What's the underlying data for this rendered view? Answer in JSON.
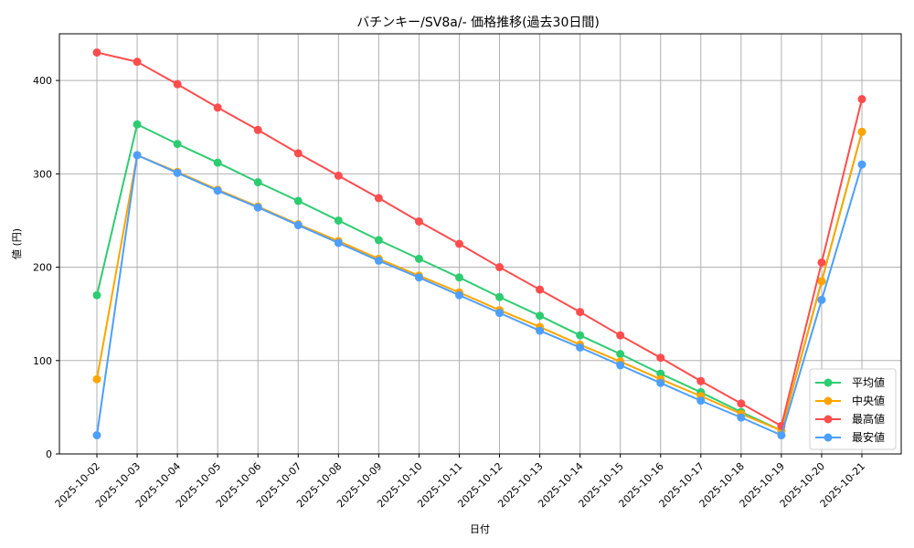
{
  "chart_data": {
    "type": "line",
    "title": "バチンキー/SV8a/- 価格推移(過去30日間)",
    "xlabel": "日付",
    "ylabel": "値 (円)",
    "ylim": [
      0,
      450
    ],
    "yticks": [
      0,
      100,
      200,
      300,
      400
    ],
    "grid": true,
    "legend_position": "lower right",
    "categories": [
      "2025-10-02",
      "2025-10-03",
      "2025-10-04",
      "2025-10-05",
      "2025-10-06",
      "2025-10-07",
      "2025-10-08",
      "2025-10-09",
      "2025-10-10",
      "2025-10-11",
      "2025-10-12",
      "2025-10-13",
      "2025-10-14",
      "2025-10-15",
      "2025-10-16",
      "2025-10-17",
      "2025-10-18",
      "2025-10-19",
      "2025-10-20",
      "2025-10-21"
    ],
    "series": [
      {
        "name": "平均値",
        "color": "#2ecc71",
        "values": [
          170,
          353,
          332,
          312,
          291,
          271,
          250,
          229,
          209,
          189,
          168,
          148,
          127,
          107,
          86,
          66,
          45,
          25,
          185,
          345
        ]
      },
      {
        "name": "中央値",
        "color": "#ffa500",
        "values": [
          80,
          320,
          302,
          283,
          265,
          246,
          228,
          209,
          191,
          173,
          154,
          136,
          117,
          99,
          80,
          62,
          43,
          25,
          185,
          345
        ]
      },
      {
        "name": "最高値",
        "color": "#ff4d4d",
        "values": [
          430,
          420,
          396,
          371,
          347,
          322,
          298,
          274,
          249,
          225,
          200,
          176,
          152,
          127,
          103,
          78,
          54,
          30,
          205,
          380
        ]
      },
      {
        "name": "最安値",
        "color": "#4d9fff",
        "values": [
          20,
          320,
          301,
          282,
          264,
          245,
          226,
          207,
          189,
          170,
          151,
          132,
          114,
          95,
          76,
          57,
          39,
          20,
          165,
          310
        ]
      }
    ]
  }
}
